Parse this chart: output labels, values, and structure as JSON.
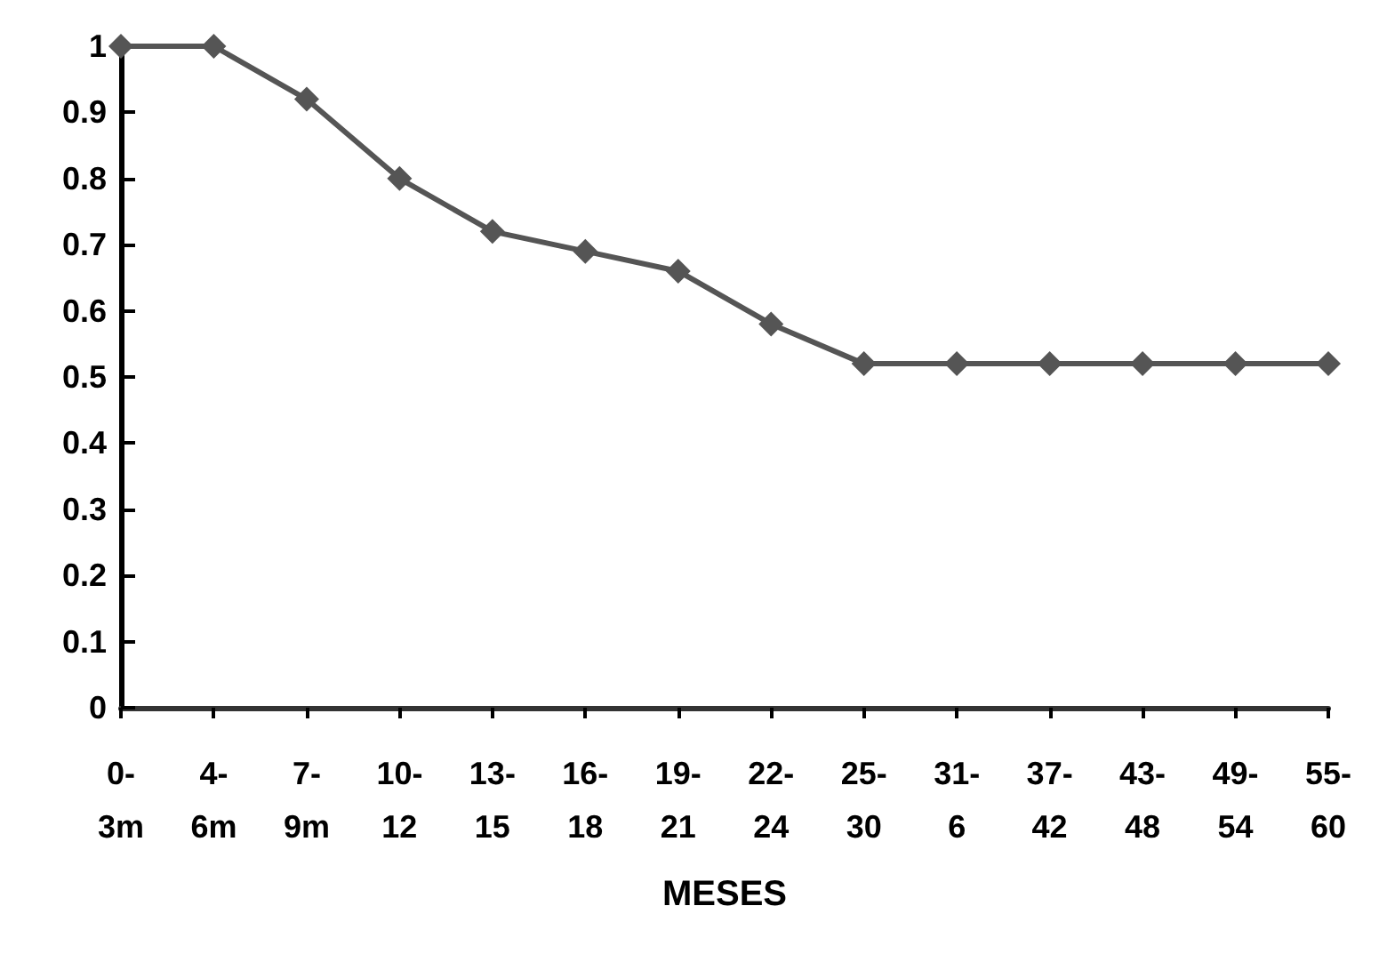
{
  "chart_data": {
    "type": "line",
    "xlabel": "MESES",
    "categories": [
      "0-\n3m",
      "4-\n6m",
      "7-\n9m",
      "10-\n12",
      "13-\n15",
      "16-\n18",
      "19-\n21",
      "22-\n24",
      "25-\n30",
      "31-\n6",
      "37-\n42",
      "43-\n48",
      "49-\n54",
      "55-\n60"
    ],
    "series": [
      {
        "color": "#555555",
        "values": [
          1,
          1,
          0.92,
          0.8,
          0.72,
          0.69,
          0.66,
          0.58,
          0.52,
          0.52,
          0.52,
          0.52,
          0.52,
          0.52
        ]
      }
    ],
    "ylim": [
      0,
      1
    ],
    "yticks": [
      0,
      0.1,
      0.2,
      0.3,
      0.4,
      0.5,
      0.6,
      0.7,
      0.8,
      0.9,
      1
    ],
    "grid": false,
    "marker": "diamond",
    "line_style": "solid"
  }
}
